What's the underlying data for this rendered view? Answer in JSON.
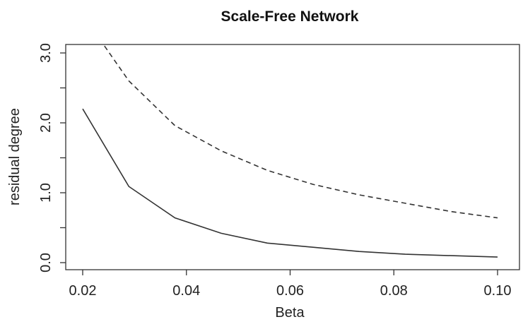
{
  "chart_data": {
    "type": "line",
    "title": "Scale-Free Network",
    "xlabel": "Beta",
    "ylabel": "residual degree",
    "xlim": [
      0.02,
      0.1
    ],
    "ylim": [
      0.0,
      3.0
    ],
    "x_ticks": [
      0.02,
      0.04,
      0.06,
      0.08,
      0.1
    ],
    "x_tick_labels": [
      "0.02",
      "0.04",
      "0.06",
      "0.08",
      "0.10"
    ],
    "y_ticks": [
      0.0,
      0.5,
      1.0,
      1.5,
      2.0,
      2.5,
      3.0
    ],
    "y_tick_labels": [
      "0.0",
      "",
      "1.0",
      "",
      "2.0",
      "",
      "3.0"
    ],
    "grid": false,
    "series": [
      {
        "line_style": "solid",
        "x": [
          0.02,
          0.0289,
          0.0378,
          0.0467,
          0.0556,
          0.0644,
          0.0733,
          0.0822,
          0.0911,
          0.1
        ],
        "y": [
          2.2,
          1.09,
          0.64,
          0.42,
          0.28,
          0.22,
          0.16,
          0.12,
          0.1,
          0.08
        ]
      },
      {
        "line_style": "dashed",
        "x": [
          0.0242,
          0.0289,
          0.0378,
          0.0467,
          0.0556,
          0.0644,
          0.0733,
          0.0822,
          0.0911,
          0.1
        ],
        "y": [
          3.1,
          2.6,
          1.96,
          1.6,
          1.32,
          1.12,
          0.97,
          0.85,
          0.73,
          0.64
        ]
      }
    ]
  }
}
